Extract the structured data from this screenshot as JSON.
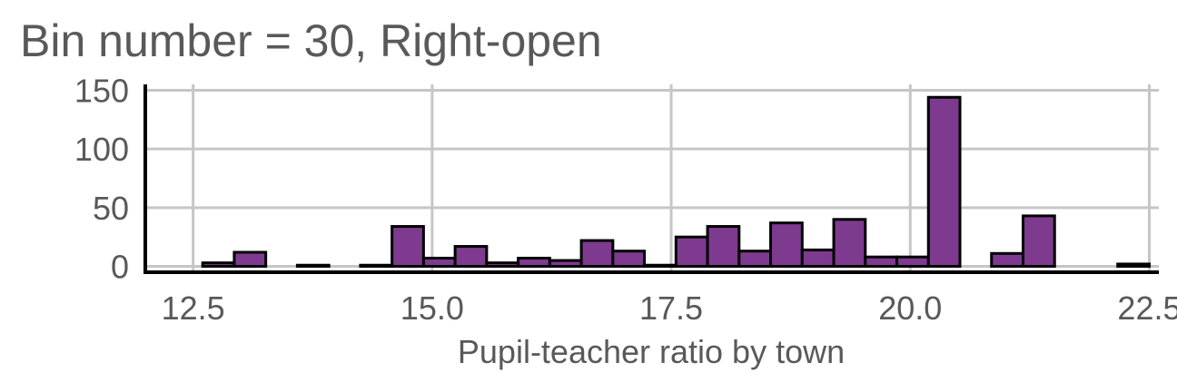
{
  "chart_data": {
    "type": "bar",
    "title": "Bin number = 30, Right-open",
    "xlabel": "Pupil-teacher ratio by town",
    "ylabel": "",
    "xlim": [
      12.0,
      22.6
    ],
    "ylim": [
      -5,
      155
    ],
    "xticks": [
      12.5,
      15.0,
      17.5,
      20.0,
      22.5
    ],
    "xtick_labels": [
      "12.5",
      "15.0",
      "17.5",
      "20.0",
      "22.5"
    ],
    "yticks": [
      0,
      50,
      100,
      150
    ],
    "ytick_labels": [
      "0",
      "50",
      "100",
      "150"
    ],
    "grid": true,
    "bar_color": "#7e3a8f",
    "bins": [
      {
        "x0": 12.6,
        "x1": 12.93,
        "count": 3
      },
      {
        "x0": 12.93,
        "x1": 13.26,
        "count": 12
      },
      {
        "x0": 13.26,
        "x1": 13.59,
        "count": 0
      },
      {
        "x0": 13.59,
        "x1": 13.92,
        "count": 1
      },
      {
        "x0": 13.92,
        "x1": 14.25,
        "count": 0
      },
      {
        "x0": 14.25,
        "x1": 14.58,
        "count": 1
      },
      {
        "x0": 14.58,
        "x1": 14.91,
        "count": 34
      },
      {
        "x0": 14.91,
        "x1": 15.24,
        "count": 7
      },
      {
        "x0": 15.24,
        "x1": 15.57,
        "count": 17
      },
      {
        "x0": 15.57,
        "x1": 15.9,
        "count": 3
      },
      {
        "x0": 15.9,
        "x1": 16.23,
        "count": 7
      },
      {
        "x0": 16.23,
        "x1": 16.56,
        "count": 5
      },
      {
        "x0": 16.56,
        "x1": 16.89,
        "count": 22
      },
      {
        "x0": 16.89,
        "x1": 17.22,
        "count": 13
      },
      {
        "x0": 17.22,
        "x1": 17.55,
        "count": 1
      },
      {
        "x0": 17.55,
        "x1": 17.88,
        "count": 25
      },
      {
        "x0": 17.88,
        "x1": 18.21,
        "count": 34
      },
      {
        "x0": 18.21,
        "x1": 18.54,
        "count": 13
      },
      {
        "x0": 18.54,
        "x1": 18.87,
        "count": 37
      },
      {
        "x0": 18.87,
        "x1": 19.2,
        "count": 14
      },
      {
        "x0": 19.2,
        "x1": 19.53,
        "count": 40
      },
      {
        "x0": 19.53,
        "x1": 19.86,
        "count": 8
      },
      {
        "x0": 19.86,
        "x1": 20.19,
        "count": 8
      },
      {
        "x0": 20.19,
        "x1": 20.52,
        "count": 144
      },
      {
        "x0": 20.52,
        "x1": 20.85,
        "count": 0
      },
      {
        "x0": 20.85,
        "x1": 21.18,
        "count": 11
      },
      {
        "x0": 21.18,
        "x1": 21.51,
        "count": 43
      },
      {
        "x0": 21.51,
        "x1": 21.84,
        "count": 0
      },
      {
        "x0": 21.84,
        "x1": 22.17,
        "count": 0
      },
      {
        "x0": 22.17,
        "x1": 22.5,
        "count": 2
      }
    ]
  }
}
